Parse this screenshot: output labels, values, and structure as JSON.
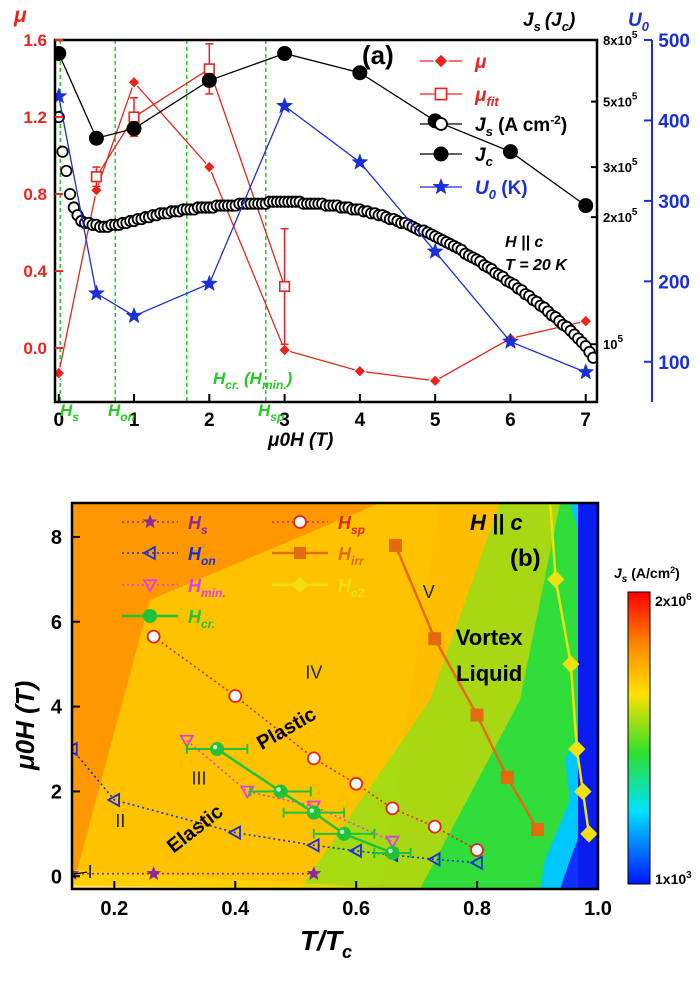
{
  "chart_data": [
    {
      "type": "line",
      "panel_label": "(a)",
      "conditions": [
        "H || c",
        "T = 20 K"
      ],
      "x": {
        "label": "μ0H (T)",
        "range": [
          -0.05,
          7.15
        ],
        "ticks": [
          0,
          1,
          2,
          3,
          4,
          5,
          6,
          7
        ]
      },
      "y_left": {
        "label": "μ",
        "range": [
          -0.28,
          1.6
        ],
        "ticks": [
          0.0,
          0.4,
          0.8,
          1.2,
          1.6
        ],
        "tick_labels": [
          "0.0",
          "0.4",
          "0.8",
          "1.2",
          "1.6"
        ]
      },
      "y_right_inner": {
        "label": "Js (Jc)",
        "label_main": "J",
        "label_sub": "s",
        "label_paren": "(J",
        "label_paren_sub": "c",
        "label_close": ")",
        "scale": "log",
        "tick_labels": [
          "8x10^5",
          "5x10^5",
          "3x10^5",
          "2x10^5",
          "10^5"
        ]
      },
      "y_right_outer": {
        "label": "U0",
        "range": [
          50,
          500
        ],
        "ticks": [
          100,
          200,
          300,
          400,
          500
        ]
      },
      "vlines": [
        {
          "name": "Hs",
          "x": 0.02,
          "label_main": "H",
          "label_sub": "s"
        },
        {
          "name": "Hon",
          "x": 0.75,
          "label_main": "H",
          "label_sub": "on"
        },
        {
          "name": "Hcr",
          "x": 1.7,
          "label_main": "H",
          "label_sub": "cr.",
          "label_extra": " (H",
          "label_extra_sub": "min.",
          "label_close": ")"
        },
        {
          "name": "Hsp",
          "x": 2.75,
          "label_main": "H",
          "label_sub": "sp"
        }
      ],
      "series": [
        {
          "name": "μ",
          "axis": "left",
          "color": "#e8241c",
          "marker": "diamond",
          "x": [
            0,
            0.5,
            1,
            2,
            3,
            4,
            5,
            6,
            7
          ],
          "y": [
            -0.13,
            0.82,
            1.38,
            0.94,
            -0.01,
            -0.12,
            -0.17,
            0.05,
            0.14
          ]
        },
        {
          "name": "μfit",
          "axis": "left",
          "color": "#e8241c",
          "marker": "square",
          "x": [
            0.5,
            1,
            2,
            3
          ],
          "y": [
            0.89,
            1.2,
            1.45,
            0.32
          ],
          "yerr": [
            0.05,
            0.1,
            0.13,
            0.3
          ]
        },
        {
          "name": "Js (A cm-2)",
          "axis": "right_inner",
          "color": "#000000",
          "marker": "open-circle",
          "x": [
            0,
            0.05,
            0.1,
            0.15,
            0.2,
            0.25,
            0.3,
            0.35,
            0.4,
            0.45,
            0.5,
            0.55,
            0.6,
            0.65,
            0.7,
            0.75,
            0.8,
            0.85,
            0.9,
            0.95,
            1.0,
            1.05,
            1.1,
            1.15,
            1.2,
            1.25,
            1.3,
            1.35,
            1.4,
            1.45,
            1.5,
            1.55,
            1.6,
            1.65,
            1.7,
            1.75,
            1.8,
            1.85,
            1.9,
            1.95,
            2.0,
            2.05,
            2.1,
            2.15,
            2.2,
            2.25,
            2.3,
            2.35,
            2.4,
            2.45,
            2.5,
            2.55,
            2.6,
            2.65,
            2.7,
            2.75,
            2.8,
            2.85,
            2.9,
            2.95,
            3.0,
            3.05,
            3.1,
            3.15,
            3.2,
            3.25,
            3.3,
            3.35,
            3.4,
            3.45,
            3.5,
            3.55,
            3.6,
            3.65,
            3.7,
            3.75,
            3.8,
            3.85,
            3.9,
            3.95,
            4.0,
            4.05,
            4.1,
            4.15,
            4.2,
            4.25,
            4.3,
            4.35,
            4.4,
            4.45,
            4.5,
            4.55,
            4.6,
            4.65,
            4.7,
            4.75,
            4.8,
            4.85,
            4.9,
            4.95,
            5.0,
            5.05,
            5.1,
            5.15,
            5.2,
            5.25,
            5.3,
            5.35,
            5.4,
            5.45,
            5.5,
            5.55,
            5.6,
            5.65,
            5.7,
            5.75,
            5.8,
            5.85,
            5.9,
            5.95,
            6.0,
            6.05,
            6.1,
            6.15,
            6.2,
            6.25,
            6.3,
            6.35,
            6.4,
            6.45,
            6.5,
            6.55,
            6.6,
            6.65,
            6.7,
            6.75,
            6.8,
            6.85,
            6.9,
            6.95,
            7.0,
            7.05,
            7.1
          ],
          "y_plot": [
            1.2,
            1.02,
            0.92,
            0.8,
            0.73,
            0.69,
            0.66,
            0.65,
            0.65,
            0.64,
            0.64,
            0.63,
            0.63,
            0.63,
            0.64,
            0.64,
            0.64,
            0.65,
            0.65,
            0.66,
            0.66,
            0.67,
            0.67,
            0.68,
            0.68,
            0.69,
            0.69,
            0.7,
            0.7,
            0.7,
            0.71,
            0.71,
            0.71,
            0.72,
            0.72,
            0.72,
            0.72,
            0.73,
            0.73,
            0.73,
            0.73,
            0.73,
            0.74,
            0.74,
            0.74,
            0.74,
            0.74,
            0.74,
            0.75,
            0.75,
            0.75,
            0.75,
            0.75,
            0.75,
            0.75,
            0.75,
            0.76,
            0.76,
            0.76,
            0.76,
            0.76,
            0.76,
            0.76,
            0.76,
            0.76,
            0.75,
            0.75,
            0.75,
            0.75,
            0.75,
            0.75,
            0.74,
            0.74,
            0.74,
            0.74,
            0.73,
            0.73,
            0.73,
            0.72,
            0.72,
            0.72,
            0.71,
            0.71,
            0.7,
            0.7,
            0.69,
            0.69,
            0.68,
            0.67,
            0.67,
            0.66,
            0.65,
            0.65,
            0.64,
            0.63,
            0.62,
            0.61,
            0.61,
            0.6,
            0.59,
            0.58,
            0.57,
            0.56,
            0.55,
            0.54,
            0.53,
            0.52,
            0.51,
            0.49,
            0.48,
            0.47,
            0.46,
            0.45,
            0.43,
            0.42,
            0.41,
            0.39,
            0.38,
            0.37,
            0.35,
            0.34,
            0.33,
            0.31,
            0.3,
            0.28,
            0.27,
            0.25,
            0.24,
            0.22,
            0.21,
            0.19,
            0.17,
            0.16,
            0.14,
            0.12,
            0.11,
            0.09,
            0.07,
            0.05,
            0.03,
            0.01,
            -0.02,
            -0.05
          ]
        },
        {
          "name": "Jc",
          "axis": "right_inner",
          "color": "#000000",
          "marker": "filled-circle",
          "x": [
            0,
            0.5,
            1,
            2,
            3,
            4,
            5,
            6,
            7
          ],
          "y_plot": [
            1.53,
            1.09,
            1.14,
            1.39,
            1.53,
            1.43,
            1.18,
            1.02,
            0.74
          ]
        },
        {
          "name": "U0 (K)",
          "axis": "right_outer",
          "color": "#1a2fd6",
          "marker": "star",
          "x": [
            0,
            0.5,
            1,
            2,
            3,
            4,
            5,
            6,
            7
          ],
          "y": [
            430,
            185,
            157,
            197,
            418,
            348,
            237,
            125,
            87
          ]
        }
      ],
      "legend": [
        {
          "id": "mu",
          "label_main": "μ",
          "label_sub": "",
          "label_rest": "",
          "color": "#e8241c"
        },
        {
          "id": "mufit",
          "label_main": "μ",
          "label_sub": "fit",
          "label_rest": "",
          "color": "#e8241c"
        },
        {
          "id": "js",
          "label_main": "J",
          "label_sub": "s",
          "label_rest": " (A cm",
          "label_sup": "-2",
          "label_close": ")",
          "color": "#000000"
        },
        {
          "id": "jc",
          "label_main": "J",
          "label_sub": "c",
          "label_rest": "",
          "color": "#000000"
        },
        {
          "id": "u0",
          "label_main": "U",
          "label_sub": "0",
          "label_rest": " (K)",
          "color": "#1a2fd6"
        }
      ]
    },
    {
      "type": "heatmap",
      "panel_label": "(b)",
      "condition": "H || c",
      "x": {
        "label": "T/Tc",
        "label_main": "T/T",
        "label_sub": "c",
        "range": [
          0.13,
          1.0
        ],
        "ticks": [
          0.2,
          0.4,
          0.6,
          0.8,
          1.0
        ],
        "tick_labels": [
          "0.2",
          "0.4",
          "0.6",
          "0.8",
          "1.0"
        ]
      },
      "y": {
        "label": "μ0H (T)",
        "range": [
          -0.3,
          8.8
        ],
        "ticks": [
          0,
          2,
          4,
          6,
          8
        ]
      },
      "colorbar": {
        "label_main": "J",
        "label_sub": "s",
        "label_rest": " (A/cm",
        "label_sup": "2",
        "label_close": ")",
        "max_label": "2x10^6",
        "min_label": "1x10^3",
        "scale": "log"
      },
      "regions": [
        {
          "name": "I",
          "x": 0.16,
          "y": 0.1
        },
        {
          "name": "II",
          "x": 0.21,
          "y": 1.3
        },
        {
          "name": "III",
          "x": 0.34,
          "y": 2.3
        },
        {
          "name": "IV",
          "x": 0.53,
          "y": 4.8
        },
        {
          "name": "V",
          "x": 0.72,
          "y": 6.7
        }
      ],
      "annotations": [
        {
          "text": "Elastic",
          "x": 0.34,
          "y": 1.0
        },
        {
          "text": "Plastic",
          "x": 0.49,
          "y": 3.35
        },
        {
          "text": "Vortex",
          "x": 0.82,
          "y": 5.45
        },
        {
          "text": "Liquid",
          "x": 0.82,
          "y": 4.6
        }
      ],
      "series": [
        {
          "name": "Hs",
          "color": "#8a2a9c",
          "marker": "star",
          "line": "dotted",
          "x": [
            0.13,
            0.265,
            0.53
          ],
          "y": [
            0.06,
            0.06,
            0.06
          ]
        },
        {
          "name": "Hon",
          "color": "#1a2fd6",
          "marker": "left-triangle",
          "line": "dotted",
          "x": [
            0.13,
            0.2,
            0.4,
            0.53,
            0.6,
            0.66,
            0.73,
            0.8
          ],
          "y": [
            3.0,
            1.8,
            1.03,
            0.73,
            0.6,
            0.5,
            0.4,
            0.32
          ]
        },
        {
          "name": "Hmin.",
          "color": "#e040e0",
          "marker": "down-triangle",
          "line": "dotted",
          "x": [
            0.32,
            0.42,
            0.53,
            0.66
          ],
          "y": [
            3.2,
            2.0,
            1.65,
            0.82
          ]
        },
        {
          "name": "Hcr.",
          "color": "#1fc23a",
          "marker": "filled-circle",
          "line": "solid",
          "x": [
            0.37,
            0.475,
            0.53,
            0.58,
            0.66
          ],
          "y": [
            3.0,
            2.0,
            1.5,
            1.0,
            0.55
          ],
          "xerr": [
            0.05,
            0.05,
            0.05,
            0.05,
            0.03
          ]
        },
        {
          "name": "Hsp",
          "color": "#e8241c",
          "marker": "open-circle",
          "line": "dotted",
          "x": [
            0.265,
            0.4,
            0.53,
            0.6,
            0.66,
            0.73,
            0.8
          ],
          "y": [
            5.65,
            4.25,
            2.78,
            2.18,
            1.6,
            1.17,
            0.62
          ]
        },
        {
          "name": "Hirr",
          "color": "#e46a10",
          "marker": "square",
          "line": "solid",
          "x": [
            0.665,
            0.73,
            0.8,
            0.85,
            0.9
          ],
          "y": [
            7.8,
            5.6,
            3.8,
            2.33,
            1.1
          ]
        },
        {
          "name": "Hc2",
          "color": "#f0e010",
          "marker": "diamond",
          "line": "solid",
          "x": [
            0.92,
            0.93,
            0.955,
            0.965,
            0.975,
            0.985
          ],
          "y": [
            9.0,
            7.0,
            5.0,
            3.0,
            2.0,
            1.0
          ]
        }
      ],
      "legend": [
        {
          "id": "hs",
          "label_main": "H",
          "label_sub": "s",
          "color": "#8a2a9c"
        },
        {
          "id": "hon",
          "label_main": "H",
          "label_sub": "on",
          "color": "#1a2fd6"
        },
        {
          "id": "hmin",
          "label_main": "H",
          "label_sub": "min.",
          "color": "#e040e0"
        },
        {
          "id": "hcr",
          "label_main": "H",
          "label_sub": "cr.",
          "color": "#1fc23a"
        },
        {
          "id": "hsp",
          "label_main": "H",
          "label_sub": "sp",
          "color": "#e8241c"
        },
        {
          "id": "hirr",
          "label_main": "H",
          "label_sub": "irr",
          "color": "#e46a10"
        },
        {
          "id": "hc2",
          "label_main": "H",
          "label_sub": "c2",
          "color": "#f0e010"
        }
      ]
    }
  ]
}
